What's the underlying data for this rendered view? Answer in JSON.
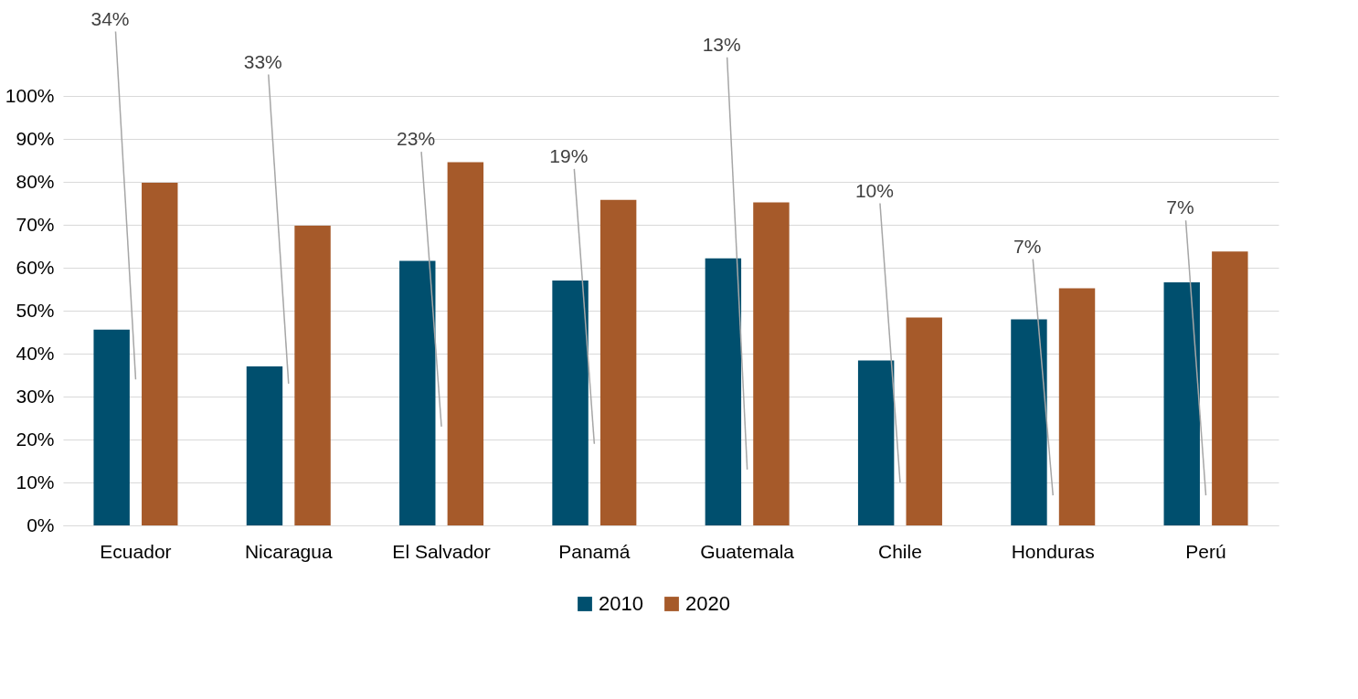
{
  "chart_data": {
    "type": "bar",
    "categories": [
      "Ecuador",
      "Nicaragua",
      "El Salvador",
      "Panamá",
      "Guatemala",
      "Chile",
      "Honduras",
      "Perú"
    ],
    "series": [
      {
        "name": "2010",
        "color": "#004f6e",
        "values": [
          45.6,
          37.0,
          61.6,
          57.0,
          62.2,
          38.4,
          48.0,
          56.6
        ]
      },
      {
        "name": "2020",
        "color": "#a65a2a",
        "values": [
          79.8,
          69.8,
          84.6,
          75.8,
          75.2,
          48.4,
          55.2,
          63.8
        ]
      }
    ],
    "ylim": [
      0,
      100
    ],
    "yticks": [
      {
        "value": 0,
        "label": "0%"
      },
      {
        "value": 10,
        "label": "10%"
      },
      {
        "value": 20,
        "label": "20%"
      },
      {
        "value": 30,
        "label": "30%"
      },
      {
        "value": 40,
        "label": "40%"
      },
      {
        "value": 50,
        "label": "50%"
      },
      {
        "value": 60,
        "label": "60%"
      },
      {
        "value": 70,
        "label": "70%"
      },
      {
        "value": 80,
        "label": "80%"
      },
      {
        "value": 90,
        "label": "90%"
      },
      {
        "value": 100,
        "label": "100%"
      }
    ],
    "grid": "y",
    "legend": "bottom",
    "annotations": [
      "34%",
      "33%",
      "23%",
      "19%",
      "13%",
      "10%",
      "7%",
      "7%"
    ]
  }
}
